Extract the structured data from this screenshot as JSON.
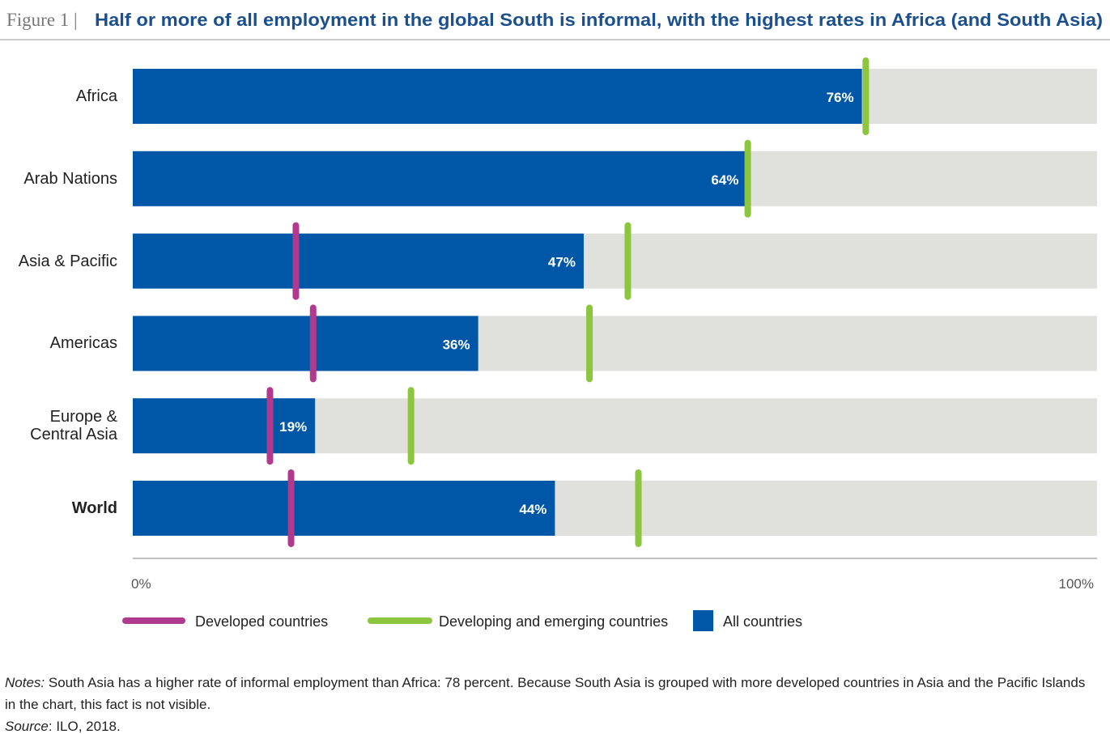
{
  "chart_data": {
    "type": "bar",
    "figure_label": "Figure 1 |",
    "title": "Half or more of all employment in the global South is informal, with the highest rates in Africa (and South Asia)",
    "categories": [
      "Africa",
      "Arab Nations",
      "Asia & Pacific",
      "Americas",
      "Europe & Central Asia",
      "World"
    ],
    "series": [
      {
        "name": "Developed countries",
        "color": "#b03a8e",
        "style": "marker",
        "values": [
          null,
          null,
          17.0,
          18.8,
          14.3,
          16.5
        ]
      },
      {
        "name": "Developing and emerging countries",
        "color": "#8cc63f",
        "style": "marker",
        "values": [
          76.4,
          64.1,
          51.6,
          47.6,
          29.0,
          52.7
        ]
      },
      {
        "name": "All countries",
        "color": "#0057a8",
        "style": "bar",
        "values": [
          76,
          64,
          47,
          36,
          19,
          44
        ],
        "value_labels": [
          "76%",
          "64%",
          "47%",
          "36%",
          "19%",
          "44%"
        ]
      }
    ],
    "xlim": [
      0,
      100
    ],
    "xticks": [
      {
        "value": 0,
        "label": "0%"
      },
      {
        "value": 100,
        "label": "100%"
      }
    ],
    "notes": {
      "label": "Notes:",
      "text": "South Asia has a higher rate of informal employment than Africa: 78 percent. Because South Asia is grouped with more developed countries in Asia and the Pacific Islands in the chart, this fact is not visible."
    },
    "source": {
      "label": "Source",
      "text": ": ILO, 2018."
    }
  }
}
